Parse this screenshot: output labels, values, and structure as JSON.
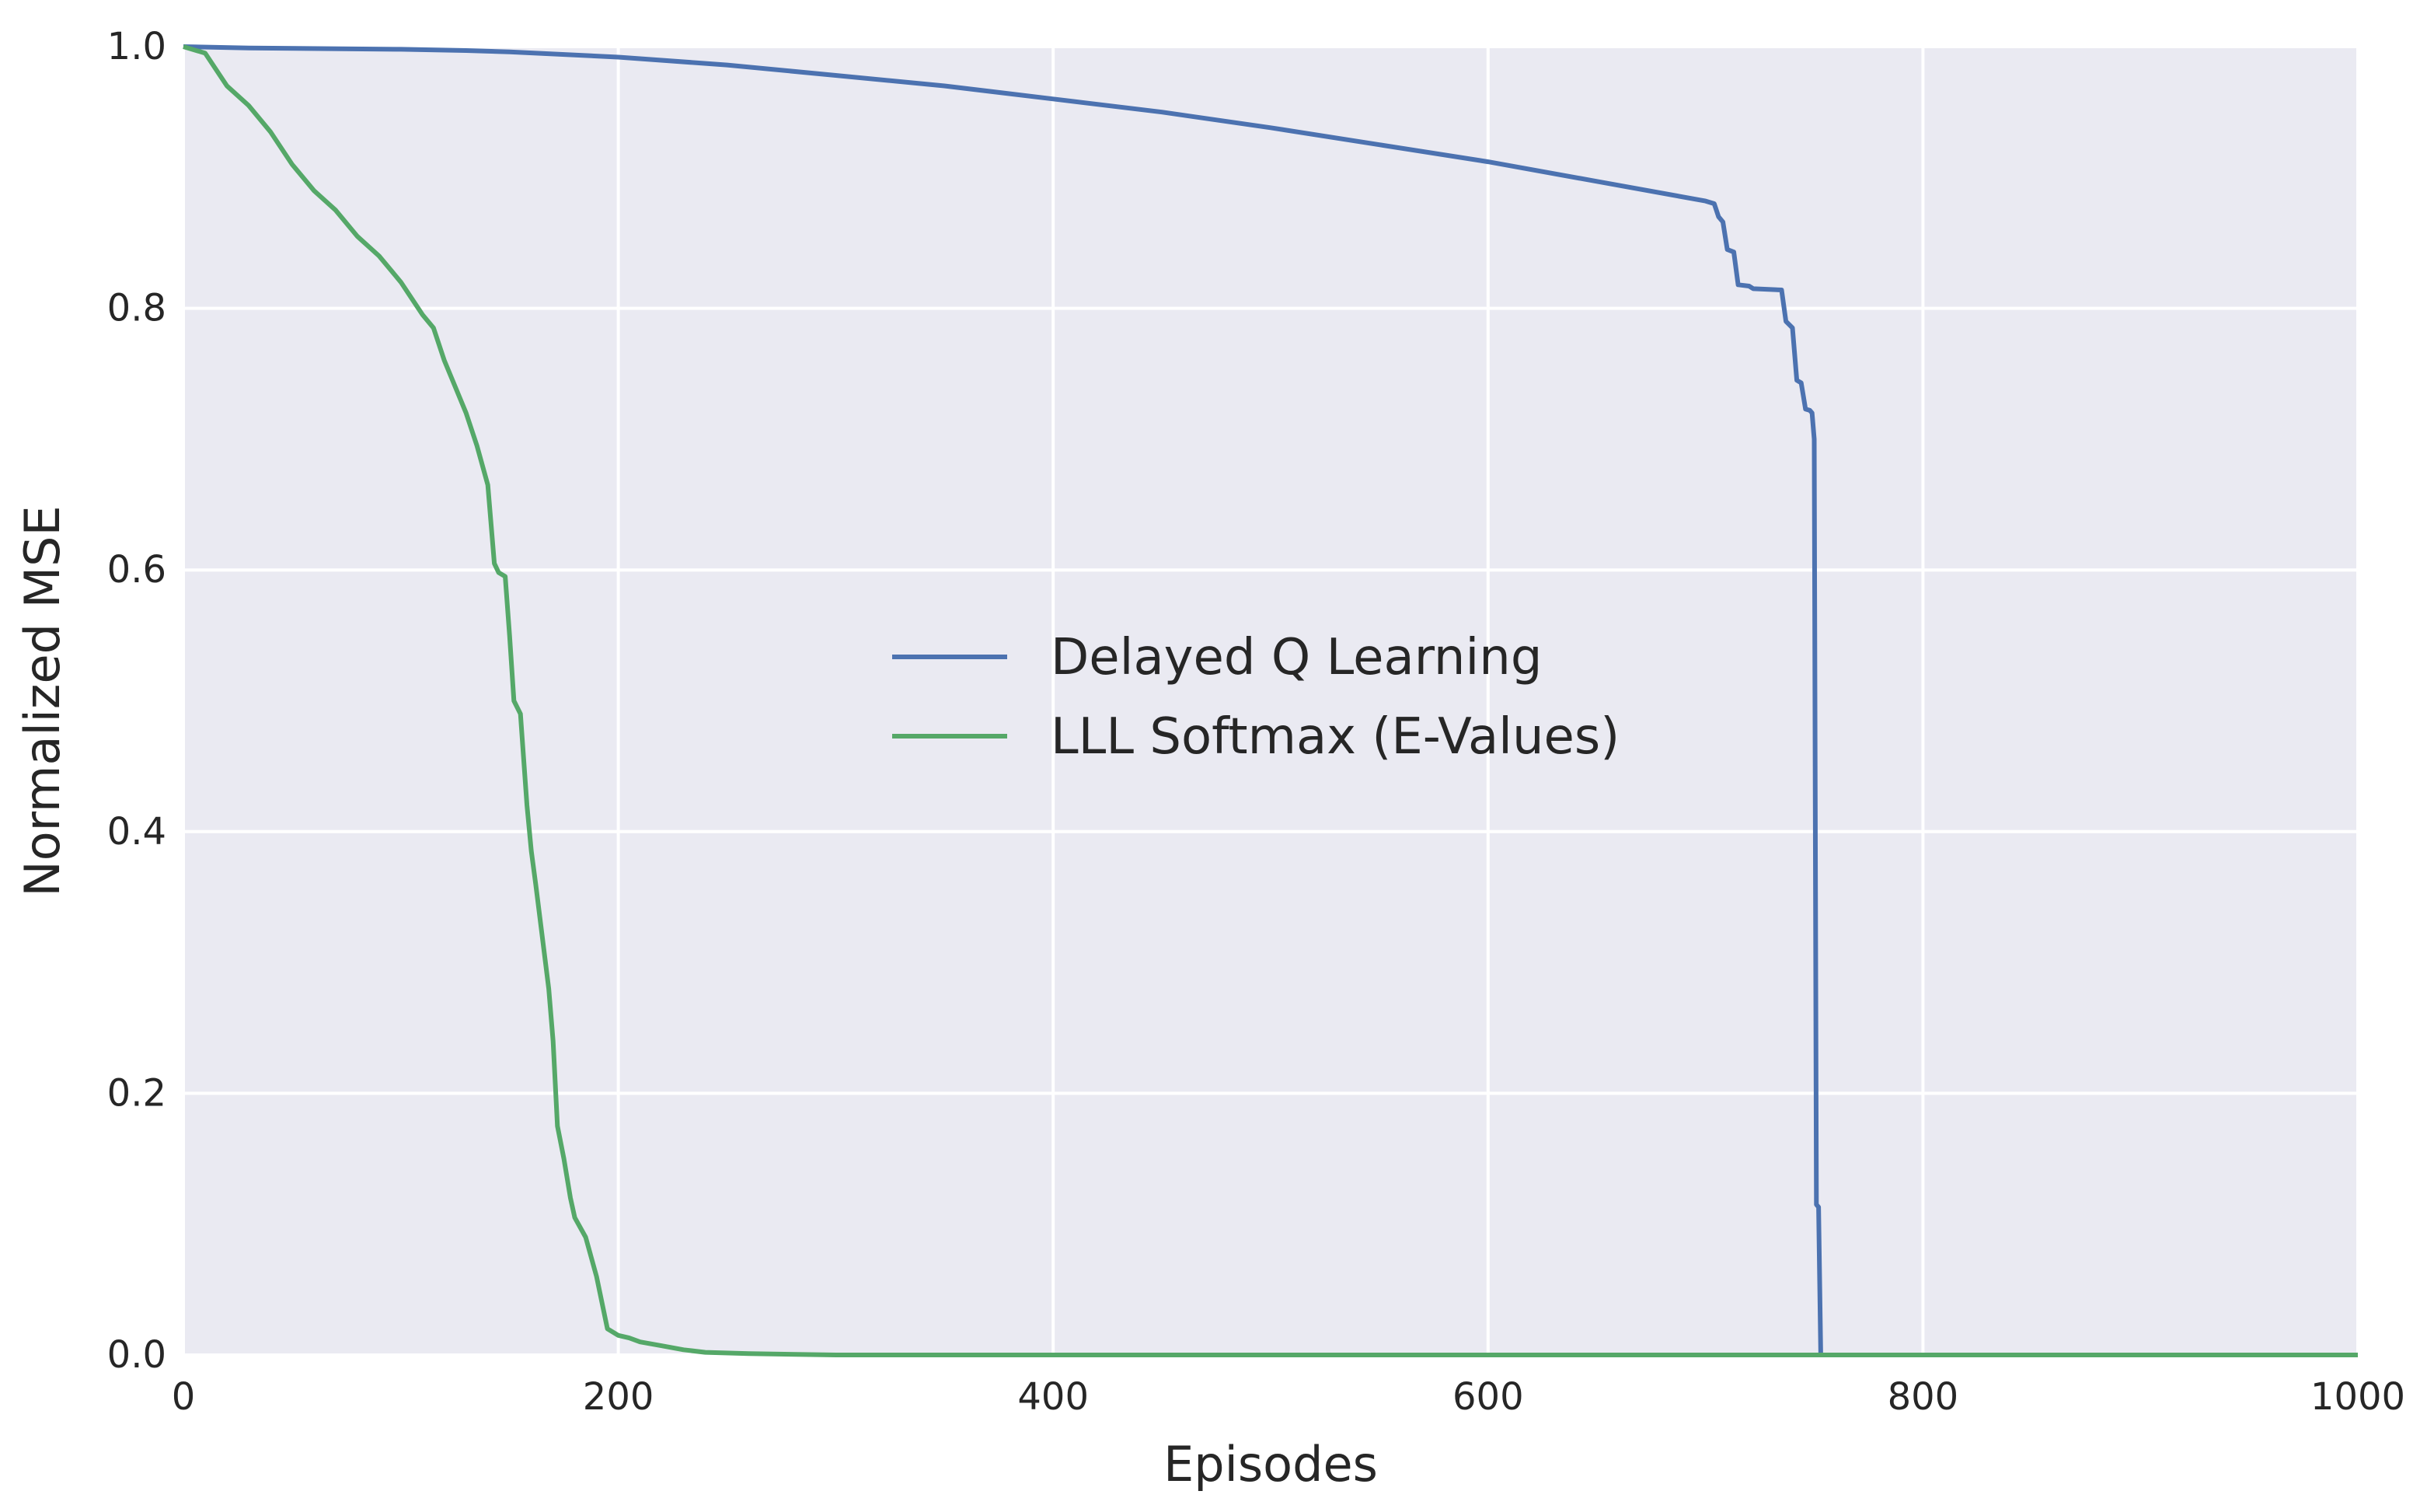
{
  "chart_data": {
    "type": "line",
    "title": "",
    "xlabel": "Episodes",
    "ylabel": "Normalized MSE",
    "xlim": [
      0,
      1000
    ],
    "ylim": [
      0.0,
      1.0
    ],
    "xticks": [
      0,
      200,
      400,
      600,
      800,
      1000
    ],
    "yticks": [
      0.0,
      0.2,
      0.4,
      0.6,
      0.8,
      1.0
    ],
    "xtick_labels": [
      "0",
      "200",
      "400",
      "600",
      "800",
      "1000"
    ],
    "ytick_labels": [
      "0.0",
      "0.2",
      "0.4",
      "0.6",
      "0.8",
      "1.0"
    ],
    "grid": true,
    "background": "#eaeaf2",
    "legend_position": "center",
    "series": [
      {
        "name": "Delayed Q Learning",
        "color": "#4c72b0",
        "x": [
          0,
          30,
          100,
          130,
          150,
          200,
          250,
          300,
          350,
          400,
          450,
          500,
          550,
          600,
          650,
          700,
          704,
          706,
          708,
          710,
          713,
          715,
          720,
          722,
          735,
          737,
          740,
          742,
          744,
          746,
          748,
          749,
          750,
          751,
          752,
          753,
          1000
        ],
        "y": [
          1.0,
          0.999,
          0.998,
          0.997,
          0.996,
          0.992,
          0.986,
          0.978,
          0.97,
          0.96,
          0.95,
          0.938,
          0.925,
          0.912,
          0.897,
          0.882,
          0.88,
          0.87,
          0.866,
          0.845,
          0.843,
          0.818,
          0.817,
          0.815,
          0.814,
          0.79,
          0.785,
          0.745,
          0.743,
          0.723,
          0.722,
          0.72,
          0.7,
          0.115,
          0.113,
          0.0,
          0.0
        ]
      },
      {
        "name": "LLL Softmax (E-Values)",
        "color": "#55a868",
        "x": [
          0,
          10,
          20,
          30,
          40,
          50,
          60,
          70,
          80,
          90,
          100,
          110,
          115,
          120,
          125,
          130,
          135,
          140,
          143,
          145,
          148,
          150,
          152,
          155,
          158,
          160,
          162,
          165,
          168,
          170,
          172,
          175,
          178,
          180,
          185,
          190,
          195,
          200,
          205,
          210,
          220,
          230,
          240,
          260,
          300,
          400,
          1000
        ],
        "y": [
          1.0,
          0.995,
          0.97,
          0.955,
          0.935,
          0.91,
          0.89,
          0.875,
          0.855,
          0.84,
          0.82,
          0.795,
          0.785,
          0.76,
          0.74,
          0.72,
          0.695,
          0.665,
          0.605,
          0.598,
          0.595,
          0.55,
          0.5,
          0.49,
          0.42,
          0.385,
          0.36,
          0.32,
          0.28,
          0.24,
          0.175,
          0.15,
          0.12,
          0.105,
          0.09,
          0.06,
          0.02,
          0.015,
          0.013,
          0.01,
          0.007,
          0.004,
          0.002,
          0.001,
          0.0,
          0.0,
          0.0
        ]
      }
    ]
  }
}
